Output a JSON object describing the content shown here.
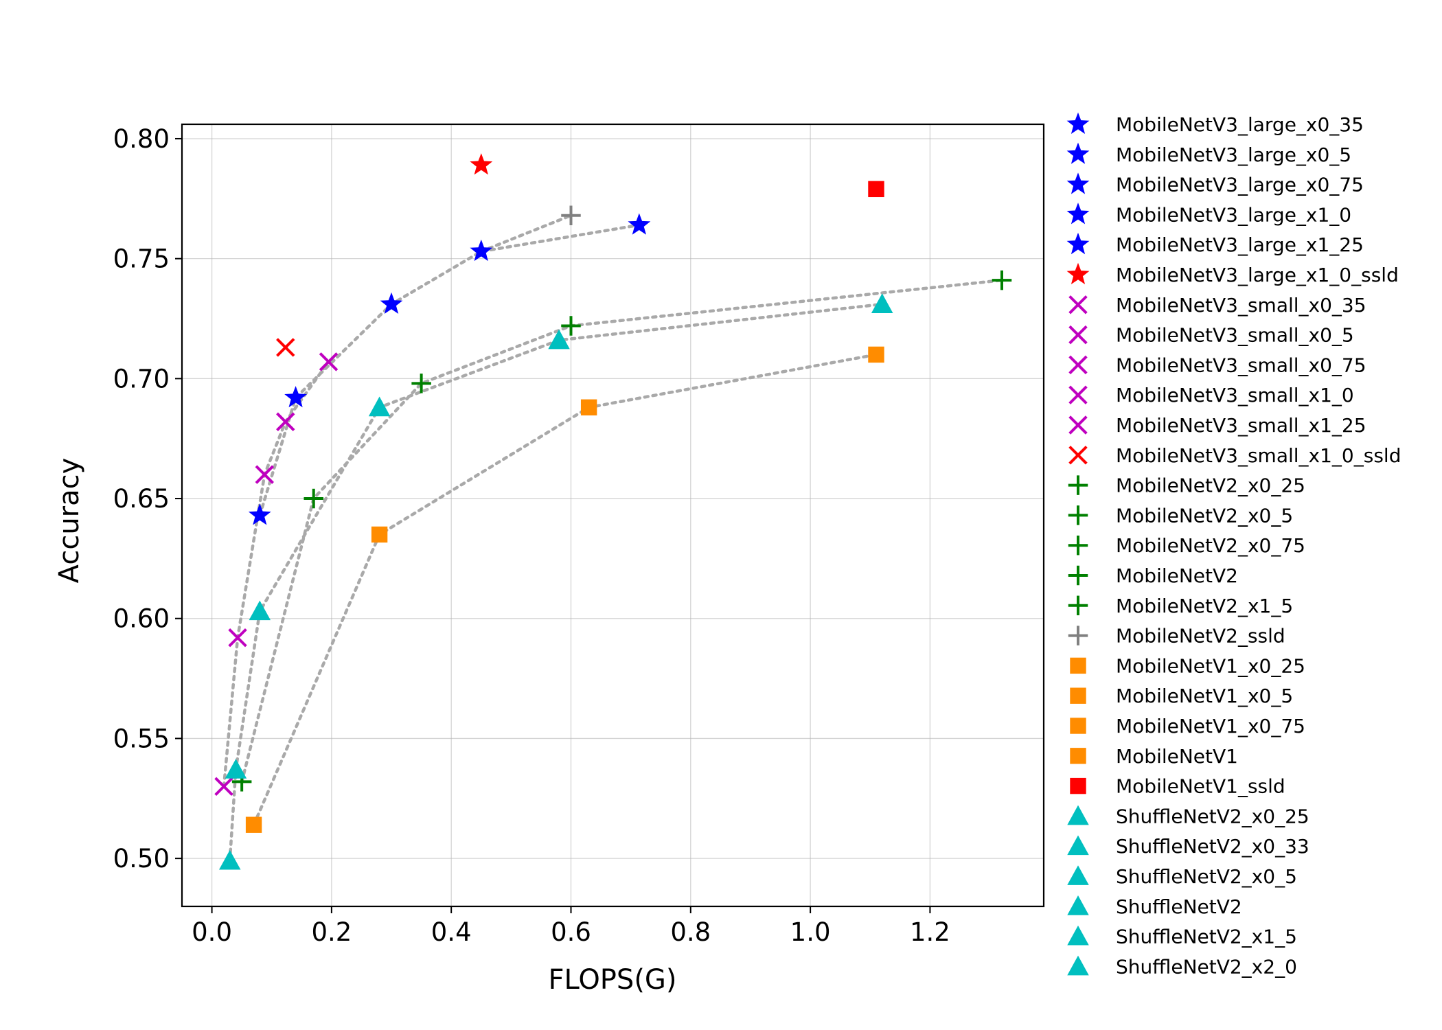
{
  "chart_data": {
    "type": "scatter",
    "title": "",
    "xlabel": "FLOPS(G)",
    "ylabel": "Accuracy",
    "xlim": [
      -0.05,
      1.39
    ],
    "ylim": [
      0.48,
      0.806
    ],
    "xticks": [
      0.0,
      0.2,
      0.4,
      0.6,
      0.8,
      1.0,
      1.2
    ],
    "xtick_labels": [
      "0.0",
      "0.2",
      "0.4",
      "0.6",
      "0.8",
      "1.0",
      "1.2"
    ],
    "yticks": [
      0.5,
      0.55,
      0.6,
      0.65,
      0.7,
      0.75,
      0.8
    ],
    "ytick_labels": [
      "0.50",
      "0.55",
      "0.60",
      "0.65",
      "0.70",
      "0.75",
      "0.80"
    ],
    "grid": true,
    "legend_position": "outside-right",
    "series": [
      {
        "name": "MobileNetV3_large_x0_35",
        "marker": "star",
        "color": "#0000ff",
        "x": [
          0.08
        ],
        "y": [
          0.643
        ]
      },
      {
        "name": "MobileNetV3_large_x0_5",
        "marker": "star",
        "color": "#0000ff",
        "x": [
          0.14
        ],
        "y": [
          0.692
        ]
      },
      {
        "name": "MobileNetV3_large_x0_75",
        "marker": "star",
        "color": "#0000ff",
        "x": [
          0.3
        ],
        "y": [
          0.731
        ]
      },
      {
        "name": "MobileNetV3_large_x1_0",
        "marker": "star",
        "color": "#0000ff",
        "x": [
          0.45
        ],
        "y": [
          0.753
        ]
      },
      {
        "name": "MobileNetV3_large_x1_25",
        "marker": "star",
        "color": "#0000ff",
        "x": [
          0.714
        ],
        "y": [
          0.764
        ]
      },
      {
        "name": "MobileNetV3_large_x1_0_ssld",
        "marker": "star",
        "color": "#ff0000",
        "x": [
          0.45
        ],
        "y": [
          0.789
        ]
      },
      {
        "name": "MobileNetV3_small_x0_35",
        "marker": "x",
        "color": "#bf00bf",
        "x": [
          0.02
        ],
        "y": [
          0.53
        ]
      },
      {
        "name": "MobileNetV3_small_x0_5",
        "marker": "x",
        "color": "#bf00bf",
        "x": [
          0.043
        ],
        "y": [
          0.592
        ]
      },
      {
        "name": "MobileNetV3_small_x0_75",
        "marker": "x",
        "color": "#bf00bf",
        "x": [
          0.088
        ],
        "y": [
          0.66
        ]
      },
      {
        "name": "MobileNetV3_small_x1_0",
        "marker": "x",
        "color": "#bf00bf",
        "x": [
          0.123
        ],
        "y": [
          0.682
        ]
      },
      {
        "name": "MobileNetV3_small_x1_25",
        "marker": "x",
        "color": "#bf00bf",
        "x": [
          0.195
        ],
        "y": [
          0.707
        ]
      },
      {
        "name": "MobileNetV3_small_x1_0_ssld",
        "marker": "x",
        "color": "#ff0000",
        "x": [
          0.123
        ],
        "y": [
          0.713
        ]
      },
      {
        "name": "MobileNetV2_x0_25",
        "marker": "plus",
        "color": "#008000",
        "x": [
          0.05
        ],
        "y": [
          0.532
        ]
      },
      {
        "name": "MobileNetV2_x0_5",
        "marker": "plus",
        "color": "#008000",
        "x": [
          0.17
        ],
        "y": [
          0.65
        ]
      },
      {
        "name": "MobileNetV2_x0_75",
        "marker": "plus",
        "color": "#008000",
        "x": [
          0.35
        ],
        "y": [
          0.698
        ]
      },
      {
        "name": "MobileNetV2",
        "marker": "plus",
        "color": "#008000",
        "x": [
          0.6
        ],
        "y": [
          0.722
        ]
      },
      {
        "name": "MobileNetV2_x1_5",
        "marker": "plus",
        "color": "#008000",
        "x": [
          1.32
        ],
        "y": [
          0.741
        ]
      },
      {
        "name": "MobileNetV2_ssld",
        "marker": "plus",
        "color": "#808080",
        "x": [
          0.6
        ],
        "y": [
          0.768
        ]
      },
      {
        "name": "MobileNetV1_x0_25",
        "marker": "square",
        "color": "#ff8c00",
        "x": [
          0.07
        ],
        "y": [
          0.514
        ]
      },
      {
        "name": "MobileNetV1_x0_5",
        "marker": "square",
        "color": "#ff8c00",
        "x": [
          0.28
        ],
        "y": [
          0.635
        ]
      },
      {
        "name": "MobileNetV1_x0_75",
        "marker": "square",
        "color": "#ff8c00",
        "x": [
          0.63
        ],
        "y": [
          0.688
        ]
      },
      {
        "name": "MobileNetV1",
        "marker": "square",
        "color": "#ff8c00",
        "x": [
          1.11
        ],
        "y": [
          0.71
        ]
      },
      {
        "name": "MobileNetV1_ssld",
        "marker": "square",
        "color": "#ff0000",
        "x": [
          1.11
        ],
        "y": [
          0.779
        ]
      },
      {
        "name": "ShuffleNetV2_x0_25",
        "marker": "triangle",
        "color": "#00bfbf",
        "x": [
          0.03
        ],
        "y": [
          0.499
        ]
      },
      {
        "name": "ShuffleNetV2_x0_33",
        "marker": "triangle",
        "color": "#00bfbf",
        "x": [
          0.04
        ],
        "y": [
          0.537
        ]
      },
      {
        "name": "ShuffleNetV2_x0_5",
        "marker": "triangle",
        "color": "#00bfbf",
        "x": [
          0.08
        ],
        "y": [
          0.603
        ]
      },
      {
        "name": "ShuffleNetV2",
        "marker": "triangle",
        "color": "#00bfbf",
        "x": [
          0.28
        ],
        "y": [
          0.688
        ]
      },
      {
        "name": "ShuffleNetV2_x1_5",
        "marker": "triangle",
        "color": "#00bfbf",
        "x": [
          0.58
        ],
        "y": [
          0.716
        ]
      },
      {
        "name": "ShuffleNetV2_x2_0",
        "marker": "triangle",
        "color": "#00bfbf",
        "x": [
          1.12
        ],
        "y": [
          0.731
        ]
      }
    ],
    "connecting_lines": {
      "style": "dotted",
      "color": "#a9a9a9",
      "families": [
        {
          "x": [
            0.08,
            0.14,
            0.3,
            0.45,
            0.714
          ],
          "y": [
            0.643,
            0.692,
            0.731,
            0.753,
            0.764
          ]
        },
        {
          "x": [
            0.02,
            0.043,
            0.088,
            0.123,
            0.195
          ],
          "y": [
            0.53,
            0.592,
            0.66,
            0.682,
            0.707
          ]
        },
        {
          "x": [
            0.05,
            0.17,
            0.35,
            0.6,
            1.32
          ],
          "y": [
            0.532,
            0.65,
            0.698,
            0.722,
            0.741
          ]
        },
        {
          "x": [
            0.07,
            0.28,
            0.63,
            1.11
          ],
          "y": [
            0.514,
            0.635,
            0.688,
            0.71
          ]
        },
        {
          "x": [
            0.03,
            0.04,
            0.08,
            0.28,
            0.58,
            1.12
          ],
          "y": [
            0.499,
            0.537,
            0.603,
            0.688,
            0.716,
            0.731
          ]
        }
      ],
      "ssld_link": {
        "x": [
          0.45,
          0.6
        ],
        "y": [
          0.753,
          0.768
        ]
      }
    }
  }
}
